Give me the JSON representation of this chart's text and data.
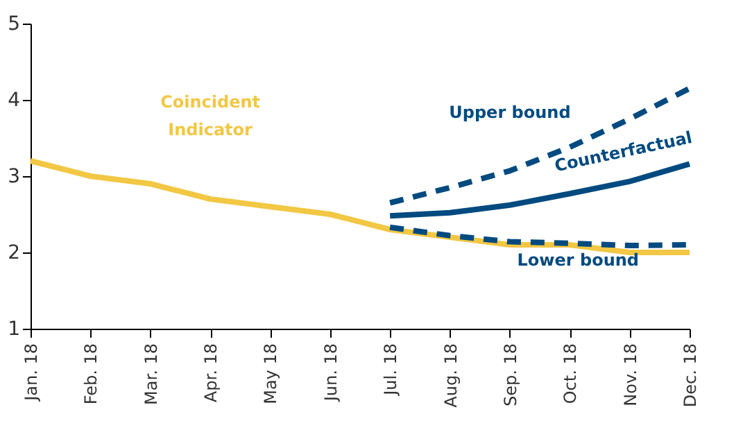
{
  "chart_data": {
    "type": "line",
    "categories": [
      "Jan. 18",
      "Feb. 18",
      "Mar. 18",
      "Apr. 18",
      "May 18",
      "Jun. 18",
      "Jul. 18",
      "Aug. 18",
      "Sep. 18",
      "Oct. 18",
      "Nov. 18",
      "Dec. 18"
    ],
    "series": [
      {
        "name": "Coincident Indicator",
        "color": "#f2c744",
        "line_style": "solid",
        "values": [
          3.2,
          3.0,
          2.9,
          2.7,
          2.6,
          2.5,
          2.3,
          2.2,
          2.1,
          2.1,
          2.0,
          2.0
        ]
      },
      {
        "name": "Upper bound",
        "color": "#004a80",
        "line_style": "dashed",
        "values": [
          null,
          null,
          null,
          null,
          null,
          null,
          2.65,
          2.85,
          3.07,
          3.38,
          3.75,
          4.15
        ]
      },
      {
        "name": "Counterfactual",
        "color": "#004a80",
        "line_style": "solid",
        "values": [
          null,
          null,
          null,
          null,
          null,
          null,
          2.48,
          2.52,
          2.62,
          2.77,
          2.93,
          3.16
        ]
      },
      {
        "name": "Lower bound",
        "color": "#004a80",
        "line_style": "dashed",
        "values": [
          null,
          null,
          null,
          null,
          null,
          null,
          2.33,
          2.22,
          2.14,
          2.12,
          2.09,
          2.1
        ]
      }
    ],
    "ylim": [
      1,
      5
    ],
    "yticks": [
      1,
      2,
      3,
      4,
      5
    ],
    "grid": false,
    "legend": false,
    "marker": "none"
  }
}
